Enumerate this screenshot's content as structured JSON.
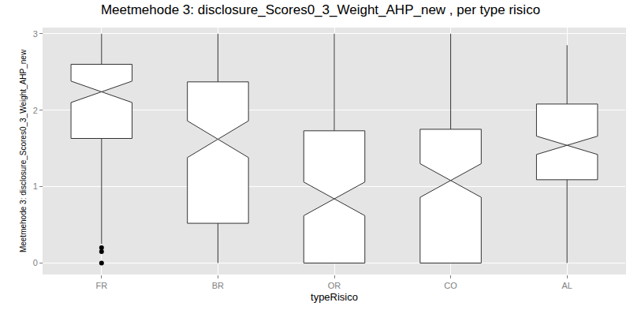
{
  "chart_data": {
    "type": "box",
    "title": "Meetmehode 3: disclosure_Scores0_3_Weight_AHP_new , per type risico",
    "x_label": "typeRisico",
    "y_label": "Meetmehode 3: disclosure_Scores0_3_Weight_AHP_new",
    "categories": [
      "FR",
      "BR",
      "OR",
      "CO",
      "AL"
    ],
    "lower": [
      0.25,
      0,
      0,
      0,
      0
    ],
    "q1": [
      1.63,
      0.52,
      0,
      0,
      1.09
    ],
    "median": [
      2.24,
      1.62,
      0.84,
      1.08,
      1.54
    ],
    "q3": [
      2.6,
      2.37,
      1.73,
      1.75,
      2.08
    ],
    "upper": [
      3,
      3,
      3,
      3,
      2.85
    ],
    "notch": [
      0.14,
      0.24,
      0.22,
      0.22,
      0.12
    ],
    "outliers": [
      [
        0.2,
        0.15,
        0
      ],
      [],
      [],
      [],
      []
    ],
    "color": "#ffffff",
    "ylim": [
      -0.15,
      3.08
    ],
    "yticks": [
      0,
      1,
      2,
      3
    ],
    "grid": true
  }
}
